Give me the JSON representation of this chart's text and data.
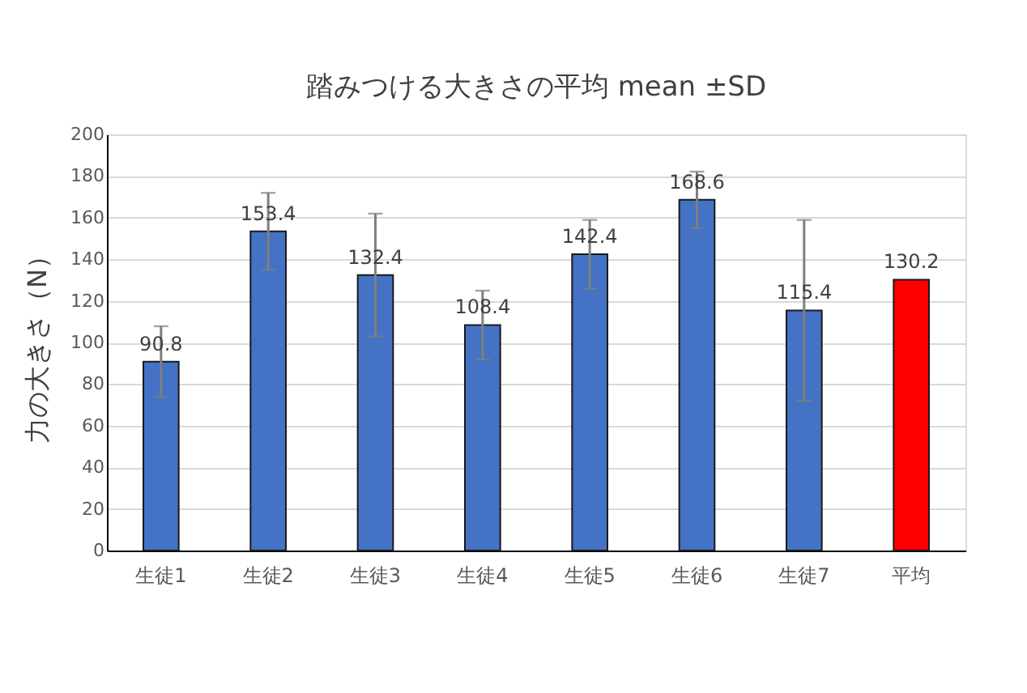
{
  "chart_data": {
    "type": "bar",
    "title": "踏みつける大きさの平均 mean ±SD",
    "ylabel": "力の大きさ（N）",
    "categories": [
      "生徒1",
      "生徒2",
      "生徒3",
      "生徒4",
      "生徒5",
      "生徒6",
      "生徒7",
      "平均"
    ],
    "values": [
      90.8,
      153.4,
      132.4,
      108.4,
      142.4,
      168.6,
      115.4,
      130.2
    ],
    "colors": [
      "#4472c4",
      "#4472c4",
      "#4472c4",
      "#4472c4",
      "#4472c4",
      "#4472c4",
      "#4472c4",
      "#ff0000"
    ],
    "errors": [
      17,
      18.5,
      29.5,
      16.5,
      16.5,
      13.5,
      43.5,
      null
    ],
    "ylim": [
      0,
      200
    ],
    "yticks": [
      0,
      20,
      40,
      60,
      80,
      100,
      120,
      140,
      160,
      180,
      200
    ],
    "grid": "y",
    "data_labels": true,
    "legend": false
  }
}
